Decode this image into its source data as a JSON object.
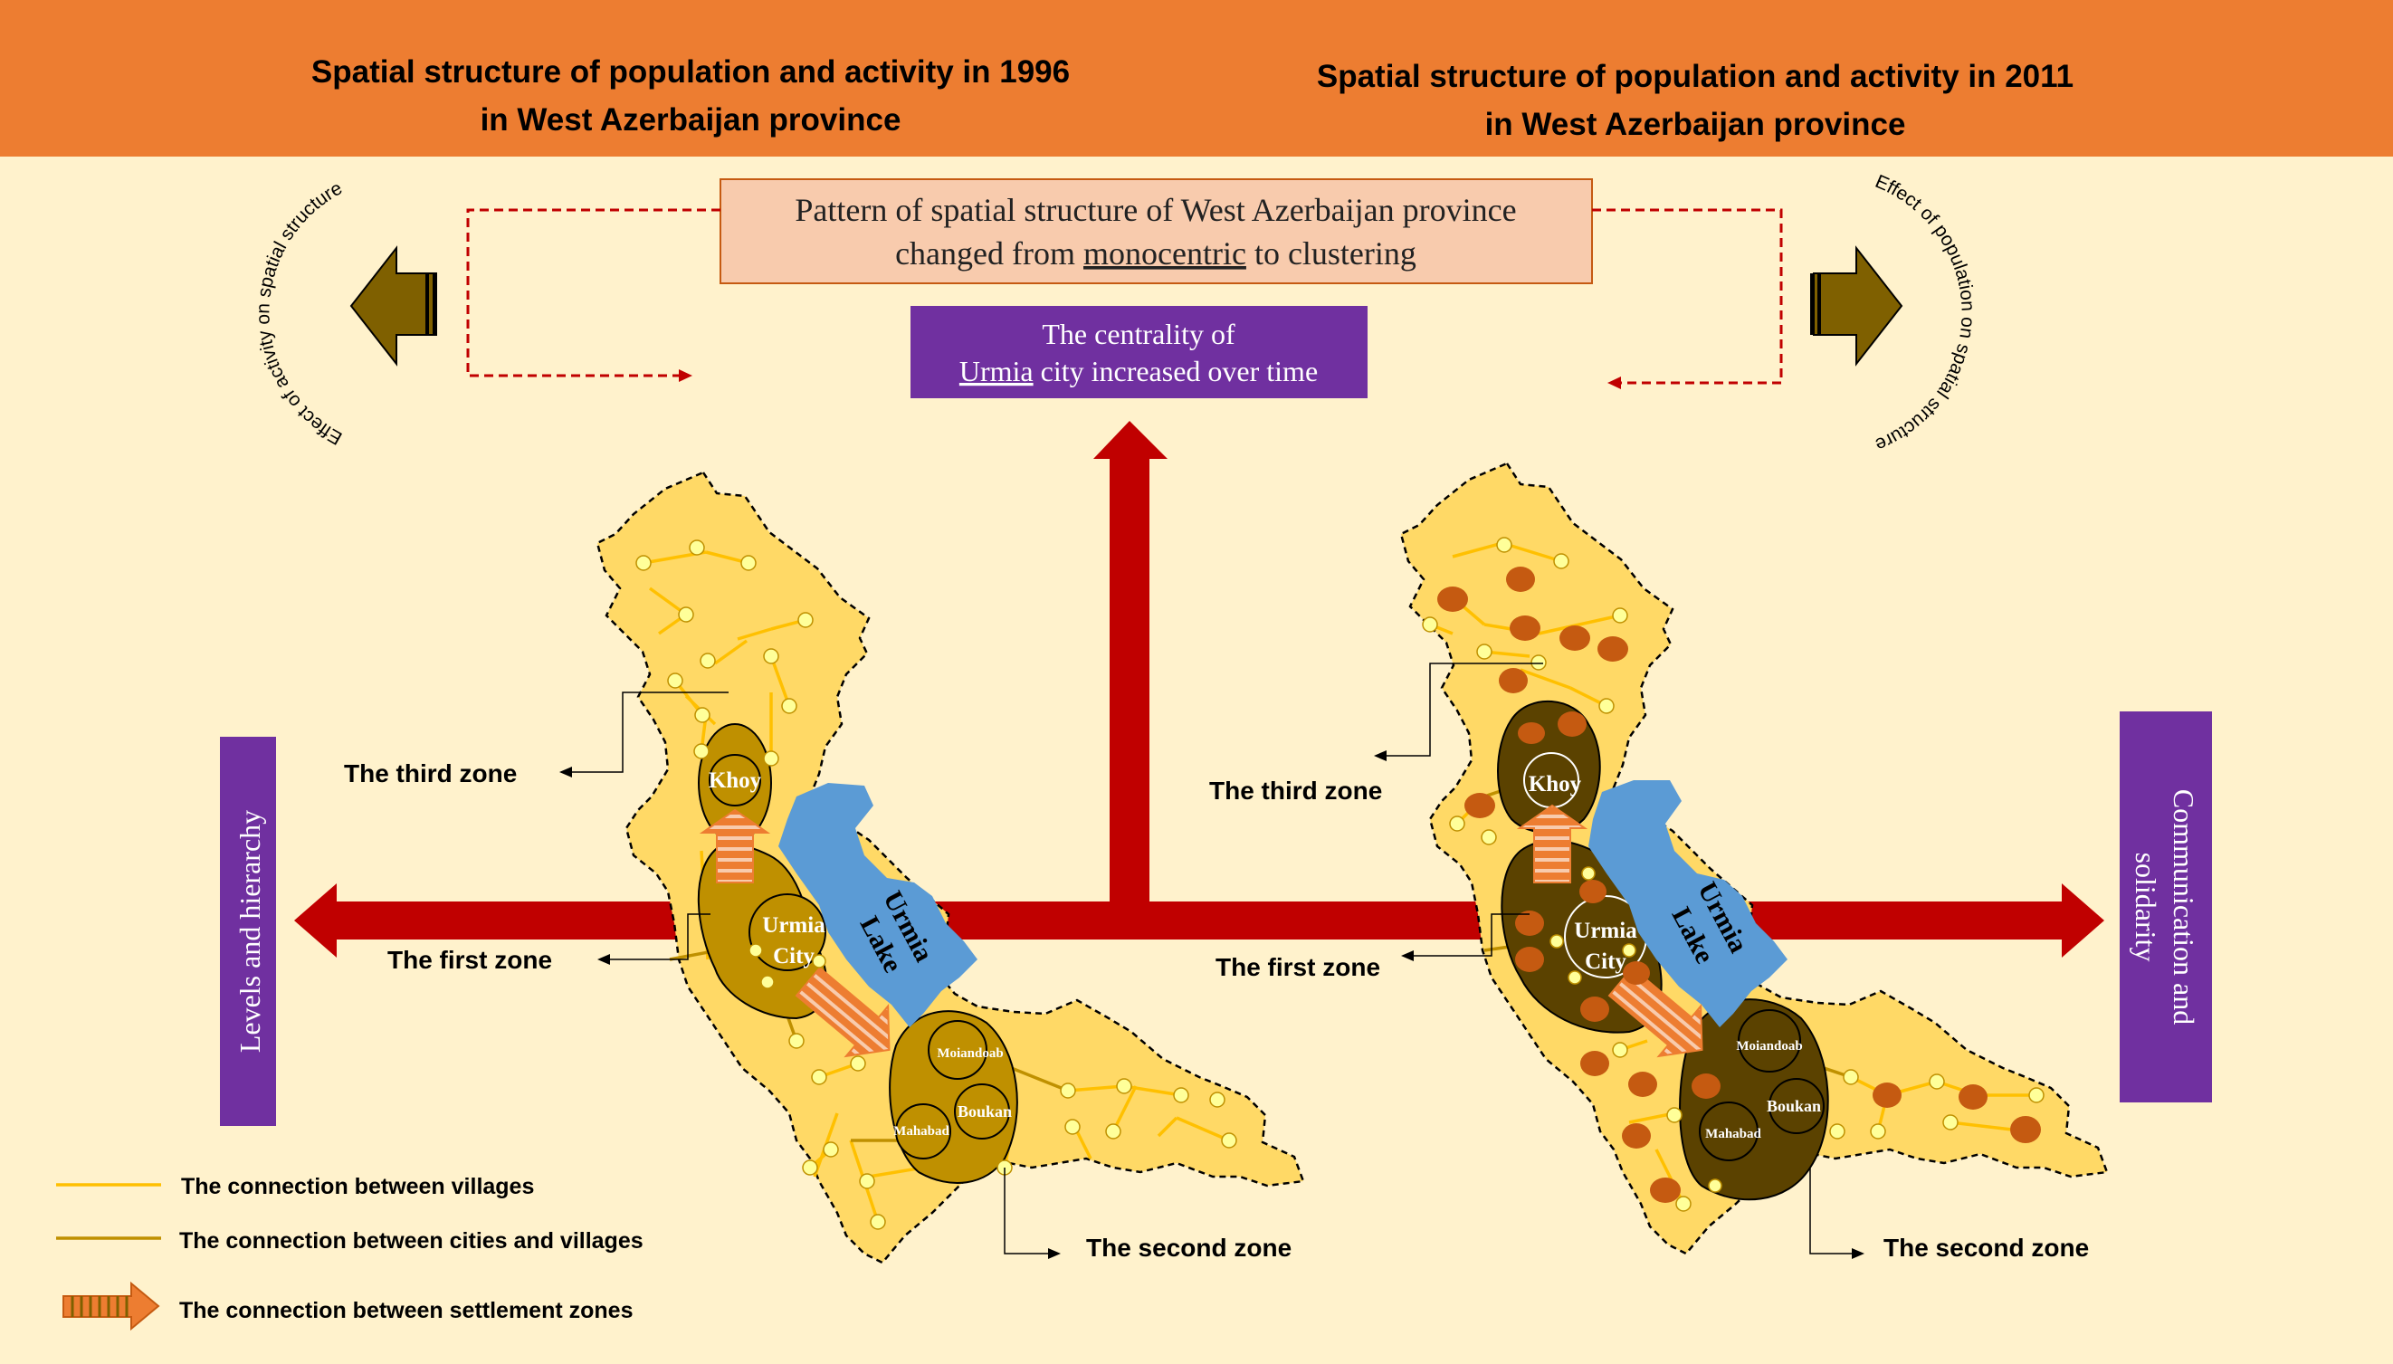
{
  "header": {
    "left_title_line1": "Spatial structure of population and activity in 1996",
    "left_title_line2": "in West Azerbaijan province",
    "right_title_line1": "Spatial structure of population and activity in 2011",
    "right_title_line2": "in West Azerbaijan province"
  },
  "center_box": {
    "line1": "Pattern of spatial structure of West Azerbaijan province",
    "line2_prefix": "changed from ",
    "line2_keyword": "monocentric",
    "line2_suffix": " to clustering"
  },
  "centrality_box": {
    "line1": "The centrality of",
    "line2_keyword": "Urmia",
    "line2_suffix": " city increased over time"
  },
  "curved_labels": {
    "left": "Effect of activity on spatial structure",
    "right": "Effect of population on spatial structure"
  },
  "side_boxes": {
    "left": "Levels and hierarchy",
    "right_line1": "Communication and",
    "right_line2": "solidarity"
  },
  "map_labels": {
    "khoy": "Khoy",
    "urmia_city_line1": "Urmia",
    "urmia_city_line2": "City",
    "urmia_lake_line1": "Urmia",
    "urmia_lake_line2": "Lake",
    "moiandoab": "Moiandoab",
    "boukan": "Boukan",
    "mahabad": "Mahabad"
  },
  "zones": {
    "third": "The third zone",
    "first": "The first zone",
    "second": "The second zone"
  },
  "legend": {
    "villages": "The connection between villages",
    "cities_villages": "The connection between cities and villages",
    "settlement_zones": "The connection between settlement zones"
  },
  "colors": {
    "header_bg": "#ED7D31",
    "page_bg": "#FFF2CC",
    "province_fill": "#FFD966",
    "zone_fill_1996": "#BF9000",
    "zone_fill_2011": "#5B4200",
    "lake": "#5B9BD5",
    "arrow_red": "#C00000",
    "purple": "#7030A0",
    "box_fill": "#F8CBAD",
    "brown_arrow": "#7F6000",
    "village_dot": "#FFFF99",
    "orange_node": "#C55A11"
  }
}
